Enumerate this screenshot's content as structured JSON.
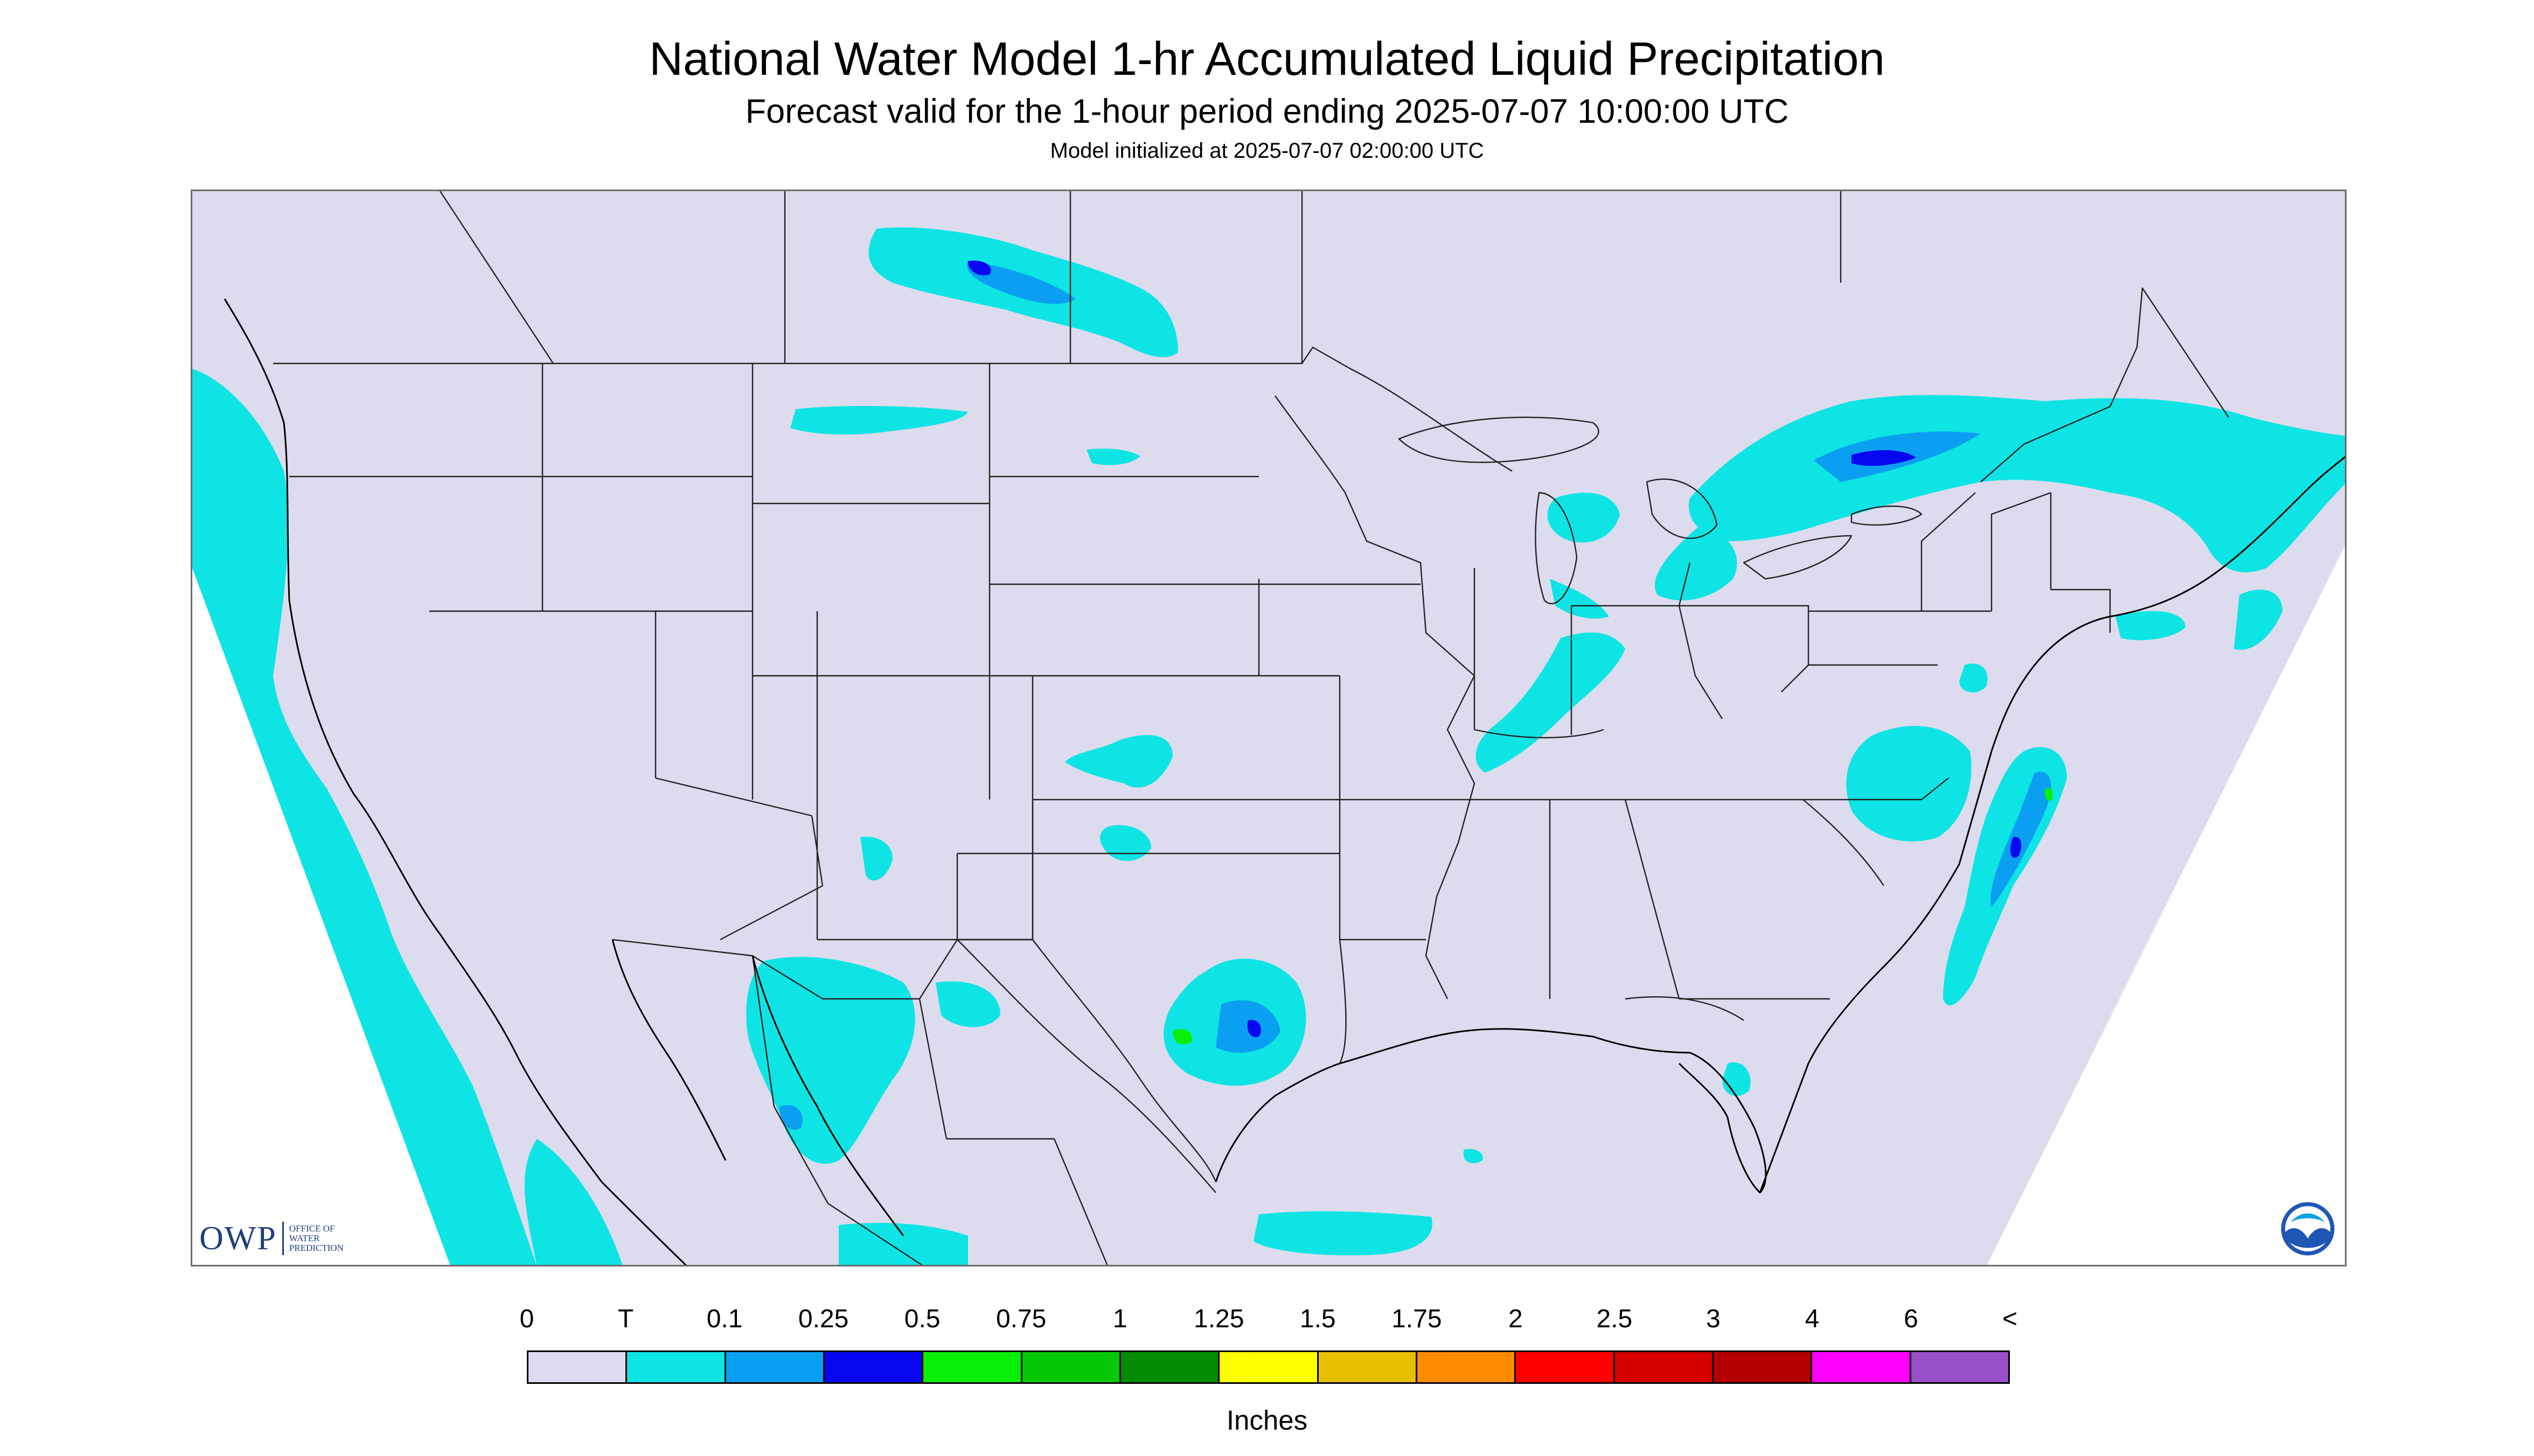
{
  "header": {
    "title": "National Water Model 1-hr Accumulated Liquid Precipitation",
    "subtitle": "Forecast valid for the 1-hour period ending 2025-07-07 10:00:00 UTC",
    "initialized": "Model initialized at 2025-07-07 02:00:00 UTC"
  },
  "map": {
    "region": "Contiguous United States",
    "background_color": "#dcdcee",
    "outside_domain_color": "#ffffff",
    "boundary_color": "#222222",
    "coastline_color": "#000000",
    "precip_colors": {
      "trace": "#0ee4e4",
      "tenth": "#0a9ff0",
      "quarter": "#0606f0",
      "half": "#08f008"
    },
    "precip_areas": [
      {
        "location": "Pacific Ocean off Washington, Oregon and California",
        "category": "T"
      },
      {
        "location": "Baja California and Pacific off Mexico",
        "category": "T"
      },
      {
        "location": "Southern Canada north of Montana and North Dakota",
        "category": "0.25"
      },
      {
        "location": "Montana",
        "category": "T"
      },
      {
        "location": "Kansas / Oklahoma",
        "category": "0.1"
      },
      {
        "location": "Central Texas",
        "category": "0.5"
      },
      {
        "location": "Chihuahua / Sonora, Mexico",
        "category": "0.25"
      },
      {
        "location": "Michigan, Illinois and Indiana",
        "category": "T"
      },
      {
        "location": "Ontario and Quebec, Canada",
        "category": "0.25"
      },
      {
        "location": "Maryland and Virginia",
        "category": "0.1"
      },
      {
        "location": "Atlantic Ocean off North Carolina and Virginia",
        "category": "0.5"
      },
      {
        "location": "Southwest Florida",
        "category": "T"
      },
      {
        "location": "New England",
        "category": "T"
      }
    ]
  },
  "logos": {
    "owp_mark": "OWP",
    "owp_text_lines": [
      "OFFICE OF",
      "WATER",
      "PREDICTION"
    ],
    "noaa_text": "NOAA"
  },
  "legend": {
    "labels": [
      "0",
      "T",
      "0.1",
      "0.25",
      "0.5",
      "0.75",
      "1",
      "1.25",
      "1.5",
      "1.75",
      "2",
      "2.5",
      "3",
      "4",
      "6",
      "<"
    ],
    "colors": [
      "#dcdcee",
      "#0ee4e4",
      "#0a9ff0",
      "#0606f0",
      "#08f008",
      "#06c806",
      "#058c05",
      "#ffff00",
      "#e6c000",
      "#ff8c00",
      "#ff0000",
      "#d60000",
      "#b40000",
      "#ff00ff",
      "#9850c8"
    ],
    "units": "Inches"
  }
}
